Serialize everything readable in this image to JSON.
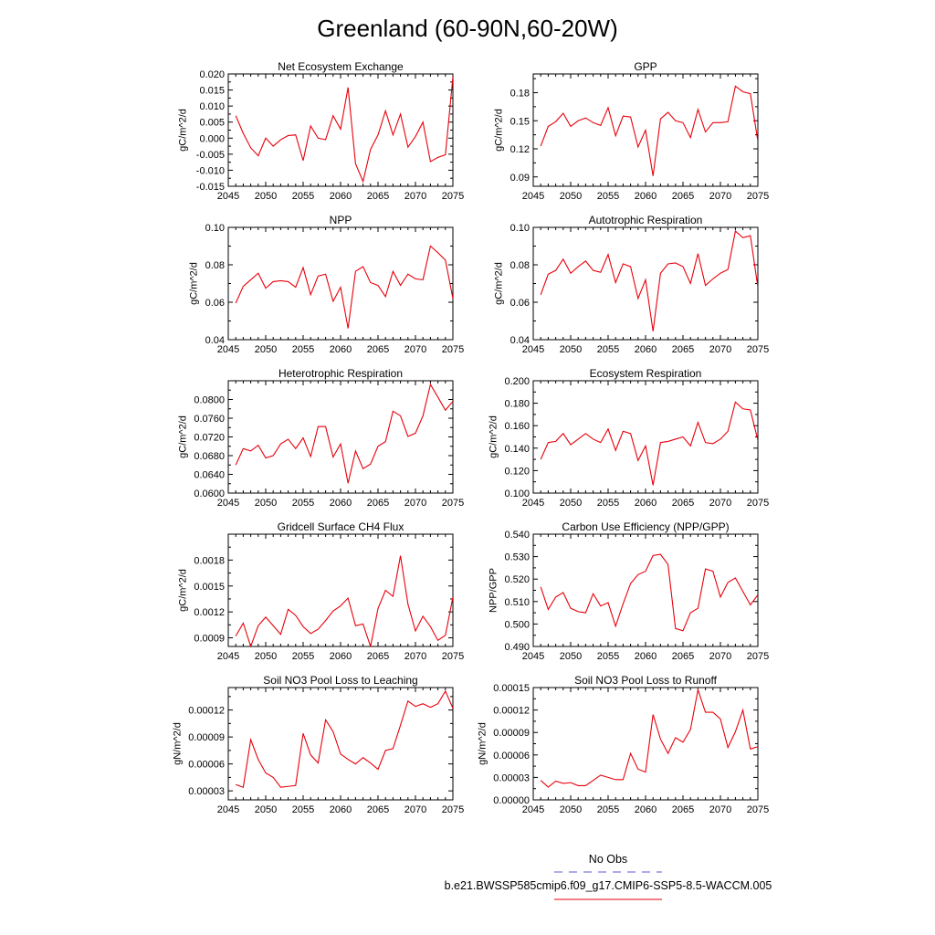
{
  "figure": {
    "title": "Greenland (60-90N,60-20W)",
    "line_color": "#e8000b",
    "obs_color": "#5a5ad6"
  },
  "legend": {
    "obs_label": "No Obs",
    "model_label": "b.e21.BWSSP585cmip6.f09_g17.CMIP6-SSP5-8.5-WACCM.005"
  },
  "chart_data": [
    {
      "type": "line",
      "title": "Net Ecosystem Exchange",
      "ylabel": "gC/m^2/d",
      "xlim": [
        2045,
        2075
      ],
      "xticks": [
        2045,
        2050,
        2055,
        2060,
        2065,
        2070,
        2075
      ],
      "xtick_labels": [
        "2045",
        "2050",
        "2055",
        "2060",
        "2065",
        "2070",
        "2075"
      ],
      "ylim": [
        -0.015,
        0.02
      ],
      "yticks": [
        -0.015,
        -0.01,
        -0.005,
        0.0,
        0.005,
        0.01,
        0.015,
        0.02
      ],
      "ytick_labels": [
        "-0.015",
        "-0.010",
        "-0.005",
        "0.000",
        "0.005",
        "0.010",
        "0.015",
        "0.020"
      ],
      "x": [
        2046,
        2047,
        2048,
        2049,
        2050,
        2051,
        2052,
        2053,
        2054,
        2055,
        2056,
        2057,
        2058,
        2059,
        2060,
        2061,
        2062,
        2063,
        2064,
        2065,
        2066,
        2067,
        2068,
        2069,
        2070,
        2071,
        2072,
        2073,
        2074,
        2075
      ],
      "values": [
        0.007,
        0.0015,
        -0.003,
        -0.0055,
        0.0,
        -0.0025,
        -0.0005,
        0.0008,
        0.001,
        -0.007,
        0.0038,
        0.0,
        -0.0005,
        0.007,
        0.0028,
        0.0158,
        -0.008,
        -0.0135,
        -0.0035,
        0.001,
        0.0085,
        0.001,
        0.0075,
        -0.0028,
        0.0005,
        0.005,
        -0.0073,
        -0.006,
        -0.0052,
        0.019
      ]
    },
    {
      "type": "line",
      "title": "GPP",
      "ylabel": "gC/m^2/d",
      "xlim": [
        2045,
        2075
      ],
      "xticks": [
        2045,
        2050,
        2055,
        2060,
        2065,
        2070,
        2075
      ],
      "xtick_labels": [
        "2045",
        "2050",
        "2055",
        "2060",
        "2065",
        "2070",
        "2075"
      ],
      "ylim": [
        0.08,
        0.2
      ],
      "yticks": [
        0.09,
        0.12,
        0.15,
        0.18
      ],
      "ytick_labels": [
        "0.09",
        "0.12",
        "0.15",
        "0.18"
      ],
      "x": [
        2046,
        2047,
        2048,
        2049,
        2050,
        2051,
        2052,
        2053,
        2054,
        2055,
        2056,
        2057,
        2058,
        2059,
        2060,
        2061,
        2062,
        2063,
        2064,
        2065,
        2066,
        2067,
        2068,
        2069,
        2070,
        2071,
        2072,
        2073,
        2074,
        2075
      ],
      "values": [
        0.123,
        0.144,
        0.149,
        0.158,
        0.144,
        0.15,
        0.153,
        0.148,
        0.145,
        0.164,
        0.134,
        0.155,
        0.154,
        0.122,
        0.14,
        0.091,
        0.152,
        0.159,
        0.15,
        0.148,
        0.132,
        0.162,
        0.138,
        0.148,
        0.148,
        0.149,
        0.187,
        0.181,
        0.179,
        0.128
      ]
    },
    {
      "type": "line",
      "title": "NPP",
      "ylabel": "gC/m^2/d",
      "xlim": [
        2045,
        2075
      ],
      "xticks": [
        2045,
        2050,
        2055,
        2060,
        2065,
        2070,
        2075
      ],
      "xtick_labels": [
        "2045",
        "2050",
        "2055",
        "2060",
        "2065",
        "2070",
        "2075"
      ],
      "ylim": [
        0.04,
        0.1
      ],
      "yticks": [
        0.04,
        0.06,
        0.08,
        0.1
      ],
      "ytick_labels": [
        "0.04",
        "0.06",
        "0.08",
        "0.10"
      ],
      "x": [
        2046,
        2047,
        2048,
        2049,
        2050,
        2051,
        2052,
        2053,
        2054,
        2055,
        2056,
        2057,
        2058,
        2059,
        2060,
        2061,
        2062,
        2063,
        2064,
        2065,
        2066,
        2067,
        2068,
        2069,
        2070,
        2071,
        2072,
        2073,
        2074,
        2075
      ],
      "values": [
        0.0595,
        0.0685,
        0.072,
        0.0755,
        0.0675,
        0.071,
        0.0715,
        0.071,
        0.068,
        0.0785,
        0.064,
        0.074,
        0.075,
        0.0605,
        0.068,
        0.046,
        0.0765,
        0.079,
        0.0705,
        0.069,
        0.063,
        0.0765,
        0.069,
        0.075,
        0.0725,
        0.072,
        0.09,
        0.0865,
        0.0825,
        0.062
      ]
    },
    {
      "type": "line",
      "title": "Autotrophic Respiration",
      "ylabel": "gC/m^2/d",
      "xlim": [
        2045,
        2075
      ],
      "xticks": [
        2045,
        2050,
        2055,
        2060,
        2065,
        2070,
        2075
      ],
      "xtick_labels": [
        "2045",
        "2050",
        "2055",
        "2060",
        "2065",
        "2070",
        "2075"
      ],
      "ylim": [
        0.04,
        0.1
      ],
      "yticks": [
        0.04,
        0.06,
        0.08,
        0.1
      ],
      "ytick_labels": [
        "0.04",
        "0.06",
        "0.08",
        "0.10"
      ],
      "x": [
        2046,
        2047,
        2048,
        2049,
        2050,
        2051,
        2052,
        2053,
        2054,
        2055,
        2056,
        2057,
        2058,
        2059,
        2060,
        2061,
        2062,
        2063,
        2064,
        2065,
        2066,
        2067,
        2068,
        2069,
        2070,
        2071,
        2072,
        2073,
        2074,
        2075
      ],
      "values": [
        0.064,
        0.075,
        0.077,
        0.083,
        0.0755,
        0.079,
        0.082,
        0.077,
        0.076,
        0.0855,
        0.0705,
        0.0805,
        0.079,
        0.062,
        0.072,
        0.0445,
        0.0755,
        0.0805,
        0.081,
        0.079,
        0.07,
        0.086,
        0.069,
        0.0725,
        0.0755,
        0.0775,
        0.098,
        0.0945,
        0.0955,
        0.068
      ]
    },
    {
      "type": "line",
      "title": "Heterotrophic Respiration",
      "ylabel": "gC/m^2/d",
      "xlim": [
        2045,
        2075
      ],
      "xticks": [
        2045,
        2050,
        2055,
        2060,
        2065,
        2070,
        2075
      ],
      "xtick_labels": [
        "2045",
        "2050",
        "2055",
        "2060",
        "2065",
        "2070",
        "2075"
      ],
      "ylim": [
        0.06,
        0.084
      ],
      "yticks": [
        0.06,
        0.064,
        0.068,
        0.072,
        0.076,
        0.08
      ],
      "ytick_labels": [
        "0.0600",
        "0.0640",
        "0.0680",
        "0.0720",
        "0.0760",
        "0.0800"
      ],
      "x": [
        2046,
        2047,
        2048,
        2049,
        2050,
        2051,
        2052,
        2053,
        2054,
        2055,
        2056,
        2057,
        2058,
        2059,
        2060,
        2061,
        2062,
        2063,
        2064,
        2065,
        2066,
        2067,
        2068,
        2069,
        2070,
        2071,
        2072,
        2073,
        2074,
        2075
      ],
      "values": [
        0.066,
        0.0695,
        0.069,
        0.0702,
        0.0675,
        0.068,
        0.0705,
        0.0715,
        0.0695,
        0.0718,
        0.0678,
        0.0742,
        0.0742,
        0.0677,
        0.0705,
        0.0621,
        0.069,
        0.0652,
        0.0662,
        0.07,
        0.071,
        0.0775,
        0.0765,
        0.0721,
        0.0728,
        0.0765,
        0.0832,
        0.0805,
        0.0777,
        0.0796
      ]
    },
    {
      "type": "line",
      "title": "Ecosystem Respiration",
      "ylabel": "gC/m^2/d",
      "xlim": [
        2045,
        2075
      ],
      "xticks": [
        2045,
        2050,
        2055,
        2060,
        2065,
        2070,
        2075
      ],
      "xtick_labels": [
        "2045",
        "2050",
        "2055",
        "2060",
        "2065",
        "2070",
        "2075"
      ],
      "ylim": [
        0.1,
        0.2
      ],
      "yticks": [
        0.1,
        0.12,
        0.14,
        0.16,
        0.18,
        0.2
      ],
      "ytick_labels": [
        "0.100",
        "0.120",
        "0.140",
        "0.160",
        "0.180",
        "0.200"
      ],
      "x": [
        2046,
        2047,
        2048,
        2049,
        2050,
        2051,
        2052,
        2053,
        2054,
        2055,
        2056,
        2057,
        2058,
        2059,
        2060,
        2061,
        2062,
        2063,
        2064,
        2065,
        2066,
        2067,
        2068,
        2069,
        2070,
        2071,
        2072,
        2073,
        2074,
        2075
      ],
      "values": [
        0.13,
        0.145,
        0.146,
        0.153,
        0.143,
        0.148,
        0.153,
        0.148,
        0.145,
        0.157,
        0.138,
        0.155,
        0.153,
        0.129,
        0.142,
        0.107,
        0.145,
        0.146,
        0.148,
        0.15,
        0.142,
        0.163,
        0.145,
        0.144,
        0.148,
        0.155,
        0.181,
        0.175,
        0.174,
        0.147
      ]
    },
    {
      "type": "line",
      "title": "Gridcell Surface CH4 Flux",
      "ylabel": "gC/m^2/d",
      "xlim": [
        2045,
        2075
      ],
      "xticks": [
        2045,
        2050,
        2055,
        2060,
        2065,
        2070,
        2075
      ],
      "xtick_labels": [
        "2045",
        "2050",
        "2055",
        "2060",
        "2065",
        "2070",
        "2075"
      ],
      "ylim": [
        0.0008,
        0.0021
      ],
      "yticks": [
        0.0009,
        0.0012,
        0.0015,
        0.0018
      ],
      "ytick_labels": [
        "0.0009",
        "0.0012",
        "0.0015",
        "0.0018"
      ],
      "x": [
        2046,
        2047,
        2048,
        2049,
        2050,
        2051,
        2052,
        2053,
        2054,
        2055,
        2056,
        2057,
        2058,
        2059,
        2060,
        2061,
        2062,
        2063,
        2064,
        2065,
        2066,
        2067,
        2068,
        2069,
        2070,
        2071,
        2072,
        2073,
        2074,
        2075
      ],
      "values": [
        0.00092,
        0.00107,
        0.0008,
        0.00104,
        0.00114,
        0.00104,
        0.00094,
        0.00123,
        0.00116,
        0.00103,
        0.00095,
        0.001,
        0.0011,
        0.00121,
        0.00127,
        0.00136,
        0.00104,
        0.00106,
        0.0008,
        0.00124,
        0.00145,
        0.00138,
        0.00185,
        0.00129,
        0.00098,
        0.00115,
        0.00103,
        0.00087,
        0.00093,
        0.00137
      ]
    },
    {
      "type": "line",
      "title": "Carbon Use Efficiency (NPP/GPP)",
      "ylabel": "NPP/GPP",
      "xlim": [
        2045,
        2075
      ],
      "xticks": [
        2045,
        2050,
        2055,
        2060,
        2065,
        2070,
        2075
      ],
      "xtick_labels": [
        "2045",
        "2050",
        "2055",
        "2060",
        "2065",
        "2070",
        "2075"
      ],
      "ylim": [
        0.49,
        0.54
      ],
      "yticks": [
        0.49,
        0.5,
        0.51,
        0.52,
        0.53,
        0.54
      ],
      "ytick_labels": [
        "0.490",
        "0.500",
        "0.510",
        "0.520",
        "0.530",
        "0.540"
      ],
      "x": [
        2046,
        2047,
        2048,
        2049,
        2050,
        2051,
        2052,
        2053,
        2054,
        2055,
        2056,
        2057,
        2058,
        2059,
        2060,
        2061,
        2062,
        2063,
        2064,
        2065,
        2066,
        2067,
        2068,
        2069,
        2070,
        2071,
        2072,
        2073,
        2074,
        2075
      ],
      "values": [
        0.5165,
        0.5065,
        0.512,
        0.514,
        0.507,
        0.5055,
        0.505,
        0.5135,
        0.508,
        0.5095,
        0.499,
        0.509,
        0.518,
        0.522,
        0.5235,
        0.5305,
        0.531,
        0.5265,
        0.498,
        0.497,
        0.505,
        0.507,
        0.5245,
        0.5235,
        0.512,
        0.5185,
        0.5205,
        0.5145,
        0.5085,
        0.513
      ]
    },
    {
      "type": "line",
      "title": "Soil NO3 Pool Loss to Leaching",
      "ylabel": "gN/m^2/d",
      "xlim": [
        2045,
        2075
      ],
      "xticks": [
        2045,
        2050,
        2055,
        2060,
        2065,
        2070,
        2075
      ],
      "xtick_labels": [
        "2045",
        "2050",
        "2055",
        "2060",
        "2065",
        "2070",
        "2075"
      ],
      "ylim": [
        2e-05,
        0.000145
      ],
      "yticks": [
        3e-05,
        6e-05,
        9e-05,
        0.00012
      ],
      "ytick_labels": [
        "0.00003",
        "0.00006",
        "0.00009",
        "0.00012"
      ],
      "x": [
        2046,
        2047,
        2048,
        2049,
        2050,
        2051,
        2052,
        2053,
        2054,
        2055,
        2056,
        2057,
        2058,
        2059,
        2060,
        2061,
        2062,
        2063,
        2064,
        2065,
        2066,
        2067,
        2068,
        2069,
        2070,
        2071,
        2072,
        2073,
        2074,
        2075
      ],
      "values": [
        3.7e-05,
        3.4e-05,
        8.7e-05,
        6.5e-05,
        5e-05,
        4.5e-05,
        3.4e-05,
        3.5e-05,
        3.6e-05,
        9.4e-05,
        7e-05,
        6.1e-05,
        0.000109,
        9.6e-05,
        7.1e-05,
        6.5e-05,
        6e-05,
        6.7e-05,
        6.1e-05,
        5.4e-05,
        7.5e-05,
        7.7e-05,
        0.000103,
        0.00013,
        0.000124,
        0.000127,
        0.000123,
        0.000127,
        0.000141,
        0.000122
      ]
    },
    {
      "type": "line",
      "title": "Soil NO3 Pool Loss to Runoff",
      "ylabel": "gN/m^2/d",
      "xlim": [
        2045,
        2075
      ],
      "xticks": [
        2045,
        2050,
        2055,
        2060,
        2065,
        2070,
        2075
      ],
      "xtick_labels": [
        "2045",
        "2050",
        "2055",
        "2060",
        "2065",
        "2070",
        "2075"
      ],
      "ylim": [
        0.0,
        0.00015
      ],
      "yticks": [
        0.0,
        3e-05,
        6e-05,
        9e-05,
        0.00012,
        0.00015
      ],
      "ytick_labels": [
        "0.00000",
        "0.00003",
        "0.00006",
        "0.00009",
        "0.00012",
        "0.00015"
      ],
      "x": [
        2046,
        2047,
        2048,
        2049,
        2050,
        2051,
        2052,
        2053,
        2054,
        2055,
        2056,
        2057,
        2058,
        2059,
        2060,
        2061,
        2062,
        2063,
        2064,
        2065,
        2066,
        2067,
        2068,
        2069,
        2070,
        2071,
        2072,
        2073,
        2074,
        2075
      ],
      "values": [
        2.6e-05,
        1.7e-05,
        2.5e-05,
        2.2e-05,
        2.3e-05,
        1.9e-05,
        1.9e-05,
        2.6e-05,
        3.3e-05,
        3e-05,
        2.7e-05,
        2.7e-05,
        6.2e-05,
        4.1e-05,
        3.7e-05,
        0.000114,
        8.1e-05,
        6.2e-05,
        8.3e-05,
        7.7e-05,
        9.4e-05,
        0.000147,
        0.000117,
        0.000117,
        0.000108,
        7e-05,
        9.1e-05,
        0.00012,
        6.8e-05,
        7.1e-05
      ]
    }
  ]
}
